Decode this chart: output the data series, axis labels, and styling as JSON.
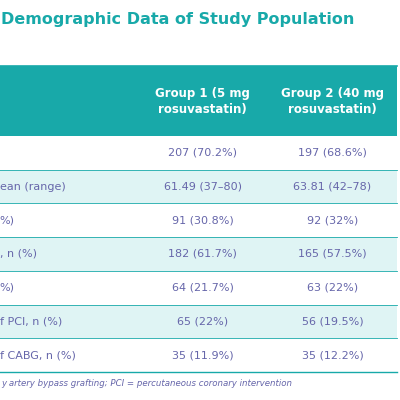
{
  "title": "Demographic Data of Study Population",
  "title_color": "#18a9a9",
  "header_bg": "#18a9a9",
  "header_text_color": "#ffffff",
  "divider_color": "#18a9a9",
  "body_text_color": "#6666aa",
  "footnote_text_color": "#6666aa",
  "headers": [
    "",
    "Group 1 (5 mg\nrosuvastatin)",
    "Group 2 (40 mg\nrosuvastatin)"
  ],
  "rows": [
    [
      "",
      "207 (70.2%)",
      "197 (68.6%)"
    ],
    [
      "ean (range)",
      "61.49 (37–80)",
      "63.81 (42–78)"
    ],
    [
      "%)",
      "91 (30.8%)",
      "92 (32%)"
    ],
    [
      ", n (%)",
      "182 (61.7%)",
      "165 (57.5%)"
    ],
    [
      "%)",
      "64 (21.7%)",
      "63 (22%)"
    ],
    [
      "f PCI, n (%)",
      "65 (22%)",
      "56 (19.5%)"
    ],
    [
      "f CABG, n (%)",
      "35 (11.9%)",
      "35 (12.2%)"
    ]
  ],
  "footnote": "y artery bypass grafting; PCI = percutaneous coronary intervention",
  "row_colors": [
    "#ffffff",
    "#dff4f4",
    "#ffffff",
    "#dff4f4",
    "#ffffff",
    "#dff4f4",
    "#ffffff"
  ],
  "title_fontsize": 11.5,
  "header_fontsize": 8.5,
  "body_fontsize": 8.0,
  "footnote_fontsize": 6.2,
  "fig_width": 4.0,
  "fig_height": 4.0,
  "dpi": 100
}
